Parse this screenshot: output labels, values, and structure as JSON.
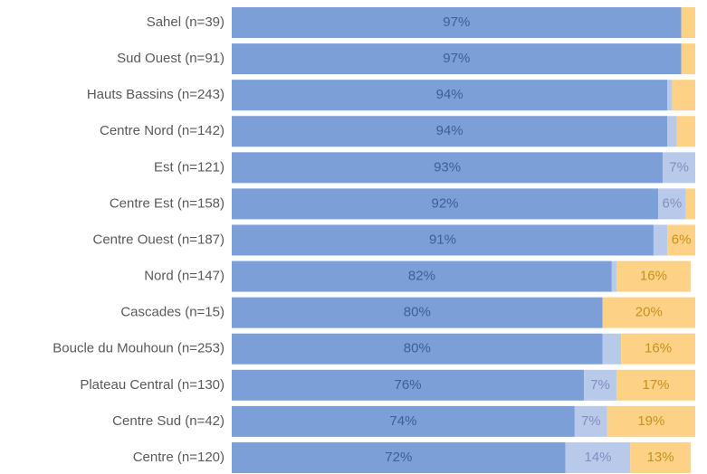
{
  "chart_data": {
    "type": "stacked-bar-horizontal",
    "categories": [
      "Sahel (n=39)",
      "Sud Ouest (n=91)",
      "Hauts Bassins (n=243)",
      "Centre Nord (n=142)",
      "Est (n=121)",
      "Centre Est (n=158)",
      "Centre Ouest (n=187)",
      "Nord (n=147)",
      "Cascades (n=15)",
      "Boucle du Mouhoun (n=253)",
      "Plateau Central (n=130)",
      "Centre Sud (n=42)",
      "Centre (n=120)"
    ],
    "xlim": [
      0,
      100
    ],
    "series": [
      {
        "color": "#7b9fd6",
        "label_color": "#3f5f95",
        "values": [
          97,
          97,
          94,
          94,
          93,
          92,
          91,
          82,
          80,
          80,
          76,
          74,
          72
        ],
        "value_labels": [
          "97%",
          "97%",
          "94%",
          "94%",
          "93%",
          "92%",
          "91%",
          "82%",
          "80%",
          "80%",
          "76%",
          "74%",
          "72%"
        ]
      },
      {
        "color": "#b9c9ea",
        "label_color": "#7f90bd",
        "values": [
          0,
          0,
          1,
          2,
          7,
          6,
          3,
          1,
          0,
          4,
          7,
          7,
          14
        ],
        "value_labels": [
          null,
          null,
          null,
          null,
          "7%",
          "6%",
          null,
          null,
          null,
          null,
          "7%",
          "7%",
          "14%"
        ]
      },
      {
        "color": "#fdd287",
        "label_color": "#c8911a",
        "values": [
          3,
          3,
          5,
          4,
          0,
          2,
          6,
          16,
          20,
          16,
          17,
          19,
          13
        ],
        "value_labels": [
          null,
          null,
          null,
          null,
          null,
          null,
          "6%",
          "16%",
          "20%",
          "16%",
          "17%",
          "19%",
          "13%"
        ]
      }
    ]
  }
}
